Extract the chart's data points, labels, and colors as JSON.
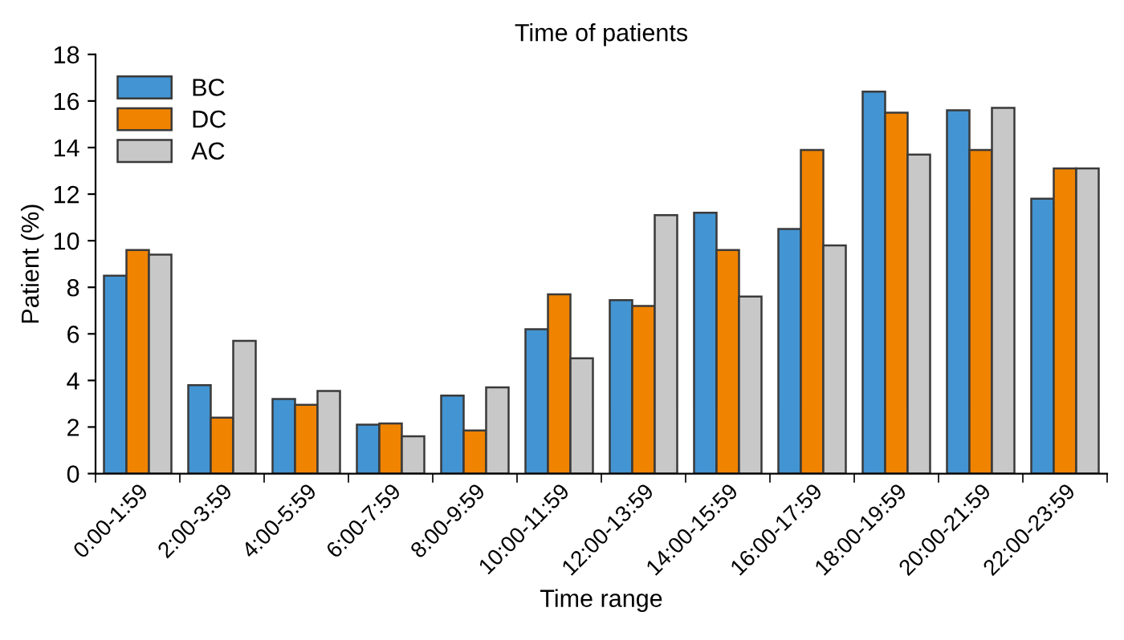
{
  "chart_data": {
    "type": "bar",
    "title": "Time of patients",
    "xlabel": "Time range",
    "ylabel": "Patient (%)",
    "categories": [
      "0:00-1:59",
      "2:00-3:59",
      "4:00-5:59",
      "6:00-7:59",
      "8:00-9:59",
      "10:00-11:59",
      "12:00-13:59",
      "14:00-15:59",
      "16:00-17:59",
      "18:00-19:59",
      "20:00-21:59",
      "22:00-23:59"
    ],
    "series": [
      {
        "name": "BC",
        "color": "#4394d2",
        "values": [
          8.5,
          3.8,
          3.2,
          2.1,
          3.35,
          6.2,
          7.45,
          11.2,
          10.5,
          16.4,
          15.6,
          11.8
        ]
      },
      {
        "name": "DC",
        "color": "#f08300",
        "values": [
          9.6,
          2.4,
          2.95,
          2.15,
          1.85,
          7.7,
          7.2,
          9.6,
          13.9,
          15.5,
          13.9,
          13.1
        ]
      },
      {
        "name": "AC",
        "color": "#c8c8c8",
        "values": [
          9.4,
          5.7,
          3.55,
          1.6,
          3.7,
          4.95,
          11.1,
          7.6,
          9.8,
          13.7,
          15.7,
          13.1
        ]
      }
    ],
    "ylim": [
      0,
      18
    ],
    "yticks": [
      0,
      2,
      4,
      6,
      8,
      10,
      12,
      14,
      16,
      18
    ],
    "grid": false,
    "legend": "top left"
  }
}
